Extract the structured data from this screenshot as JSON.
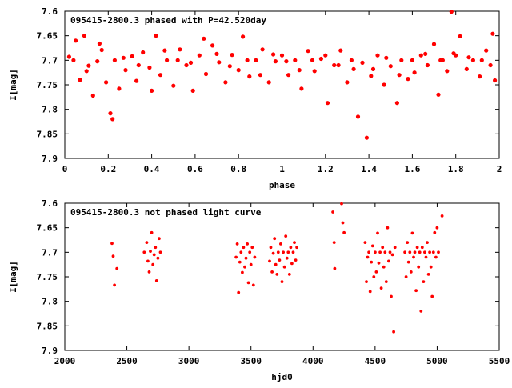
{
  "chart_data": [
    {
      "type": "scatter",
      "title": "095415-2800.3 phased with P=42.520day",
      "xlabel": "phase",
      "ylabel": "I[mag]",
      "xlim": [
        0,
        2
      ],
      "ylim": [
        7.9,
        7.6
      ],
      "xticks": [
        "0",
        "0.2",
        "0.4",
        "0.6",
        "0.8",
        "1",
        "1.2",
        "1.4",
        "1.6",
        "1.8",
        "2"
      ],
      "yticks": [
        "7.6",
        "7.65",
        "7.7",
        "7.75",
        "7.8",
        "7.85",
        "7.9"
      ],
      "grid": false,
      "marker": "filled-circle",
      "color": "#ff0000",
      "points": [
        [
          0.02,
          7.693
        ],
        [
          0.05,
          7.66
        ],
        [
          0.07,
          7.74
        ],
        [
          0.09,
          7.65
        ],
        [
          0.11,
          7.711
        ],
        [
          0.13,
          7.772
        ],
        [
          0.15,
          7.702
        ],
        [
          0.17,
          7.679
        ],
        [
          0.19,
          7.745
        ],
        [
          0.21,
          7.808
        ],
        [
          0.23,
          7.7
        ],
        [
          0.25,
          7.758
        ],
        [
          0.28,
          7.72
        ],
        [
          0.31,
          7.692
        ],
        [
          0.33,
          7.742
        ],
        [
          0.36,
          7.684
        ],
        [
          0.39,
          7.715
        ],
        [
          0.42,
          7.65
        ],
        [
          0.44,
          7.73
        ],
        [
          0.47,
          7.7
        ],
        [
          0.5,
          7.752
        ],
        [
          0.53,
          7.678
        ],
        [
          0.56,
          7.71
        ],
        [
          0.59,
          7.762
        ],
        [
          0.62,
          7.69
        ],
        [
          0.65,
          7.728
        ],
        [
          0.68,
          7.67
        ],
        [
          0.71,
          7.704
        ],
        [
          0.74,
          7.745
        ],
        [
          0.77,
          7.689
        ],
        [
          0.8,
          7.72
        ],
        [
          0.82,
          7.652
        ],
        [
          0.85,
          7.733
        ],
        [
          0.88,
          7.7
        ],
        [
          0.91,
          7.678
        ],
        [
          0.94,
          7.745
        ],
        [
          0.97,
          7.702
        ],
        [
          1.0,
          7.69
        ],
        [
          1.03,
          7.73
        ],
        [
          1.06,
          7.7
        ],
        [
          1.09,
          7.758
        ],
        [
          1.12,
          7.681
        ],
        [
          1.15,
          7.722
        ],
        [
          1.18,
          7.697
        ],
        [
          1.21,
          7.787
        ],
        [
          1.24,
          7.71
        ],
        [
          1.27,
          7.68
        ],
        [
          1.3,
          7.745
        ],
        [
          1.33,
          7.718
        ],
        [
          1.35,
          7.815
        ],
        [
          1.37,
          7.705
        ],
        [
          1.39,
          7.858
        ],
        [
          1.41,
          7.732
        ],
        [
          1.44,
          7.69
        ],
        [
          1.47,
          7.75
        ],
        [
          1.5,
          7.712
        ],
        [
          1.53,
          7.787
        ],
        [
          1.55,
          7.7
        ],
        [
          1.58,
          7.738
        ],
        [
          1.61,
          7.725
        ],
        [
          1.64,
          7.69
        ],
        [
          1.67,
          7.71
        ],
        [
          1.7,
          7.667
        ],
        [
          1.72,
          7.77
        ],
        [
          1.74,
          7.7
        ],
        [
          1.76,
          7.722
        ],
        [
          1.78,
          7.601
        ],
        [
          1.8,
          7.69
        ],
        [
          1.82,
          7.651
        ],
        [
          1.85,
          7.718
        ],
        [
          1.88,
          7.7
        ],
        [
          1.91,
          7.733
        ],
        [
          1.94,
          7.68
        ],
        [
          1.96,
          7.71
        ],
        [
          1.98,
          7.741
        ],
        [
          0.04,
          7.7
        ],
        [
          0.1,
          7.722
        ],
        [
          0.16,
          7.666
        ],
        [
          0.22,
          7.82
        ],
        [
          0.27,
          7.695
        ],
        [
          0.34,
          7.71
        ],
        [
          0.4,
          7.762
        ],
        [
          0.46,
          7.68
        ],
        [
          0.52,
          7.7
        ],
        [
          0.58,
          7.705
        ],
        [
          0.64,
          7.656
        ],
        [
          0.7,
          7.687
        ],
        [
          0.76,
          7.712
        ],
        [
          0.84,
          7.7
        ],
        [
          0.9,
          7.73
        ],
        [
          0.96,
          7.688
        ],
        [
          1.02,
          7.702
        ],
        [
          1.08,
          7.72
        ],
        [
          1.14,
          7.7
        ],
        [
          1.2,
          7.69
        ],
        [
          1.26,
          7.71
        ],
        [
          1.32,
          7.7
        ],
        [
          1.42,
          7.718
        ],
        [
          1.48,
          7.695
        ],
        [
          1.54,
          7.73
        ],
        [
          1.6,
          7.7
        ],
        [
          1.66,
          7.687
        ],
        [
          1.73,
          7.7
        ],
        [
          1.79,
          7.686
        ],
        [
          1.86,
          7.694
        ],
        [
          1.92,
          7.7
        ],
        [
          1.97,
          7.646
        ]
      ]
    },
    {
      "type": "scatter",
      "title": "095415-2800.3 not phased light curve",
      "xlabel": "hjd0",
      "ylabel": "I[mag]",
      "xlim": [
        2000,
        5500
      ],
      "ylim": [
        7.9,
        7.6
      ],
      "xticks": [
        "2000",
        "2500",
        "3000",
        "3500",
        "4000",
        "4500",
        "5000",
        "5500"
      ],
      "yticks": [
        "7.6",
        "7.65",
        "7.7",
        "7.75",
        "7.8",
        "7.85",
        "7.9"
      ],
      "grid": false,
      "marker": "filled-circle",
      "color": "#ff0000",
      "points": [
        [
          2380,
          7.682
        ],
        [
          2390,
          7.708
        ],
        [
          2400,
          7.767
        ],
        [
          2420,
          7.733
        ],
        [
          2640,
          7.7
        ],
        [
          2660,
          7.68
        ],
        [
          2670,
          7.718
        ],
        [
          2680,
          7.74
        ],
        [
          2690,
          7.698
        ],
        [
          2700,
          7.66
        ],
        [
          2710,
          7.725
        ],
        [
          2720,
          7.705
        ],
        [
          2730,
          7.69
        ],
        [
          2740,
          7.758
        ],
        [
          2750,
          7.712
        ],
        [
          2760,
          7.672
        ],
        [
          2770,
          7.7
        ],
        [
          3380,
          7.71
        ],
        [
          3390,
          7.683
        ],
        [
          3400,
          7.782
        ],
        [
          3410,
          7.72
        ],
        [
          3420,
          7.7
        ],
        [
          3430,
          7.741
        ],
        [
          3440,
          7.69
        ],
        [
          3450,
          7.73
        ],
        [
          3460,
          7.712
        ],
        [
          3470,
          7.683
        ],
        [
          3480,
          7.762
        ],
        [
          3490,
          7.7
        ],
        [
          3500,
          7.725
        ],
        [
          3510,
          7.69
        ],
        [
          3520,
          7.767
        ],
        [
          3530,
          7.71
        ],
        [
          3650,
          7.718
        ],
        [
          3660,
          7.69
        ],
        [
          3670,
          7.74
        ],
        [
          3680,
          7.702
        ],
        [
          3690,
          7.672
        ],
        [
          3700,
          7.725
        ],
        [
          3710,
          7.745
        ],
        [
          3720,
          7.7
        ],
        [
          3730,
          7.716
        ],
        [
          3740,
          7.683
        ],
        [
          3750,
          7.76
        ],
        [
          3760,
          7.7
        ],
        [
          3770,
          7.73
        ],
        [
          3780,
          7.667
        ],
        [
          3790,
          7.712
        ],
        [
          3800,
          7.7
        ],
        [
          3810,
          7.745
        ],
        [
          3820,
          7.69
        ],
        [
          3830,
          7.723
        ],
        [
          3840,
          7.7
        ],
        [
          3850,
          7.68
        ],
        [
          3860,
          7.716
        ],
        [
          3870,
          7.69
        ],
        [
          4160,
          7.618
        ],
        [
          4170,
          7.68
        ],
        [
          4175,
          7.733
        ],
        [
          4230,
          7.601
        ],
        [
          4240,
          7.64
        ],
        [
          4250,
          7.66
        ],
        [
          4420,
          7.68
        ],
        [
          4430,
          7.76
        ],
        [
          4440,
          7.71
        ],
        [
          4450,
          7.7
        ],
        [
          4460,
          7.78
        ],
        [
          4470,
          7.72
        ],
        [
          4480,
          7.687
        ],
        [
          4490,
          7.75
        ],
        [
          4500,
          7.7
        ],
        [
          4510,
          7.74
        ],
        [
          4520,
          7.661
        ],
        [
          4530,
          7.722
        ],
        [
          4540,
          7.7
        ],
        [
          4550,
          7.773
        ],
        [
          4560,
          7.69
        ],
        [
          4570,
          7.73
        ],
        [
          4580,
          7.7
        ],
        [
          4590,
          7.76
        ],
        [
          4600,
          7.65
        ],
        [
          4610,
          7.718
        ],
        [
          4620,
          7.7
        ],
        [
          4630,
          7.79
        ],
        [
          4640,
          7.705
        ],
        [
          4650,
          7.862
        ],
        [
          4660,
          7.69
        ],
        [
          4740,
          7.7
        ],
        [
          4750,
          7.75
        ],
        [
          4760,
          7.68
        ],
        [
          4770,
          7.72
        ],
        [
          4780,
          7.7
        ],
        [
          4790,
          7.74
        ],
        [
          4800,
          7.661
        ],
        [
          4810,
          7.71
        ],
        [
          4820,
          7.7
        ],
        [
          4830,
          7.778
        ],
        [
          4840,
          7.69
        ],
        [
          4850,
          7.73
        ],
        [
          4860,
          7.7
        ],
        [
          4870,
          7.82
        ],
        [
          4880,
          7.69
        ],
        [
          4890,
          7.76
        ],
        [
          4900,
          7.7
        ],
        [
          4910,
          7.71
        ],
        [
          4920,
          7.68
        ],
        [
          4930,
          7.745
        ],
        [
          4940,
          7.7
        ],
        [
          4950,
          7.73
        ],
        [
          4960,
          7.79
        ],
        [
          4970,
          7.7
        ],
        [
          4980,
          7.66
        ],
        [
          4990,
          7.71
        ],
        [
          5000,
          7.65
        ],
        [
          5010,
          7.7
        ],
        [
          5040,
          7.626
        ]
      ]
    }
  ]
}
